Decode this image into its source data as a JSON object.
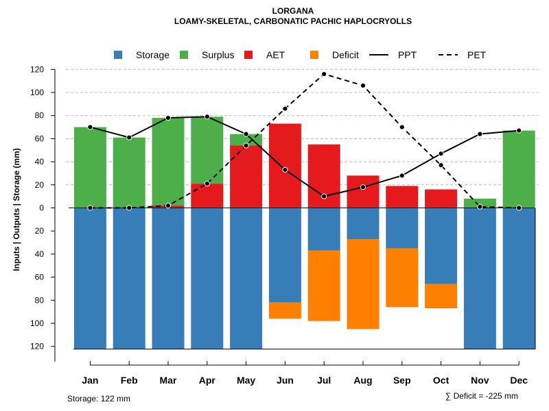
{
  "chart_data": {
    "type": "bar",
    "title": "LORGANA",
    "subtitle": "LOAMY-SKELETAL, CARBONATIC PACHIC HAPLOCRYOLLS",
    "ylabel": "Inputs | Outputs | Storage    (mm)",
    "ylim": [
      -122,
      120
    ],
    "y_ticks": [
      {
        "value": 120,
        "label": "120"
      },
      {
        "value": 100,
        "label": "100"
      },
      {
        "value": 80,
        "label": "80"
      },
      {
        "value": 60,
        "label": "60"
      },
      {
        "value": 40,
        "label": "40"
      },
      {
        "value": 20,
        "label": "20"
      },
      {
        "value": 0,
        "label": "0"
      },
      {
        "value": -20,
        "label": "20"
      },
      {
        "value": -40,
        "label": "40"
      },
      {
        "value": -60,
        "label": "60"
      },
      {
        "value": -80,
        "label": "80"
      },
      {
        "value": -100,
        "label": "100"
      },
      {
        "value": -120,
        "label": "120"
      }
    ],
    "categories": [
      "Jan",
      "Feb",
      "Mar",
      "Apr",
      "May",
      "Jun",
      "Jul",
      "Aug",
      "Sep",
      "Oct",
      "Nov",
      "Dec"
    ],
    "series": [
      {
        "name": "Storage",
        "color": "#377EB8",
        "values": [
          122,
          122,
          122,
          122,
          122,
          82,
          37,
          27,
          35,
          66,
          122,
          122
        ]
      },
      {
        "name": "Surplus",
        "color": "#4DAF4A",
        "values": [
          70,
          61,
          76,
          58,
          10,
          0,
          0,
          0,
          0,
          0,
          8,
          67
        ]
      },
      {
        "name": "AET",
        "color": "#E41A1C",
        "values": [
          0,
          0,
          2,
          21,
          54,
          73,
          55,
          28,
          19,
          16,
          0,
          0
        ]
      },
      {
        "name": "Deficit",
        "color": "#FF7F00",
        "values": [
          0,
          0,
          0,
          0,
          0,
          14,
          61,
          78,
          51,
          21,
          0,
          0
        ]
      },
      {
        "name": "PPT",
        "color": "#000000",
        "values": [
          70,
          61,
          78,
          79,
          64,
          33,
          10,
          18,
          28,
          47,
          64,
          67
        ]
      },
      {
        "name": "PET",
        "color": "#000000",
        "values": [
          0,
          0,
          2,
          21,
          54,
          86,
          116,
          106,
          70,
          37,
          1,
          0
        ]
      }
    ],
    "legend": [
      {
        "label": "Storage",
        "color": "#377EB8",
        "kind": "square"
      },
      {
        "label": "Surplus",
        "color": "#4DAF4A",
        "kind": "square"
      },
      {
        "label": "AET",
        "color": "#E41A1C",
        "kind": "square"
      },
      {
        "label": "Deficit",
        "color": "#FF7F00",
        "kind": "square"
      },
      {
        "label": "PPT",
        "color": "#000000",
        "kind": "solid"
      },
      {
        "label": "PET",
        "color": "#000000",
        "kind": "dashed"
      }
    ],
    "legend_position": "top",
    "grid": true
  },
  "footer": {
    "storage_label": "Storage: 122 mm",
    "deficit_label": "∑ Deficit = -225 mm"
  }
}
